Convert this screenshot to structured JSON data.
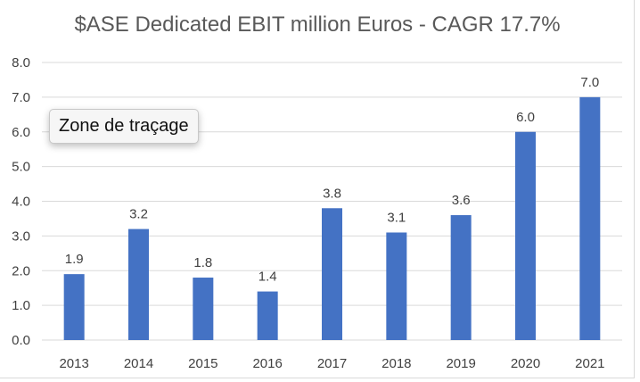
{
  "chart_data": {
    "type": "bar",
    "title": "$ASE Dedicated EBIT million Euros - CAGR 17.7%",
    "categories": [
      "2013",
      "2014",
      "2015",
      "2016",
      "2017",
      "2018",
      "2019",
      "2020",
      "2021"
    ],
    "values": [
      1.9,
      3.2,
      1.8,
      1.4,
      3.8,
      3.1,
      3.6,
      6.0,
      7.0
    ],
    "data_labels": [
      "1.9",
      "3.2",
      "1.8",
      "1.4",
      "3.8",
      "3.1",
      "3.6",
      "6.0",
      "7.0"
    ],
    "y_ticks": [
      "0.0",
      "1.0",
      "2.0",
      "3.0",
      "4.0",
      "5.0",
      "6.0",
      "7.0",
      "8.0"
    ],
    "ylim": [
      0,
      8
    ],
    "grid": true,
    "legend": "none",
    "bar_color": "#4472c4",
    "grid_color": "#d9d9d9"
  },
  "tooltip": {
    "text": "Zone de traçage"
  }
}
